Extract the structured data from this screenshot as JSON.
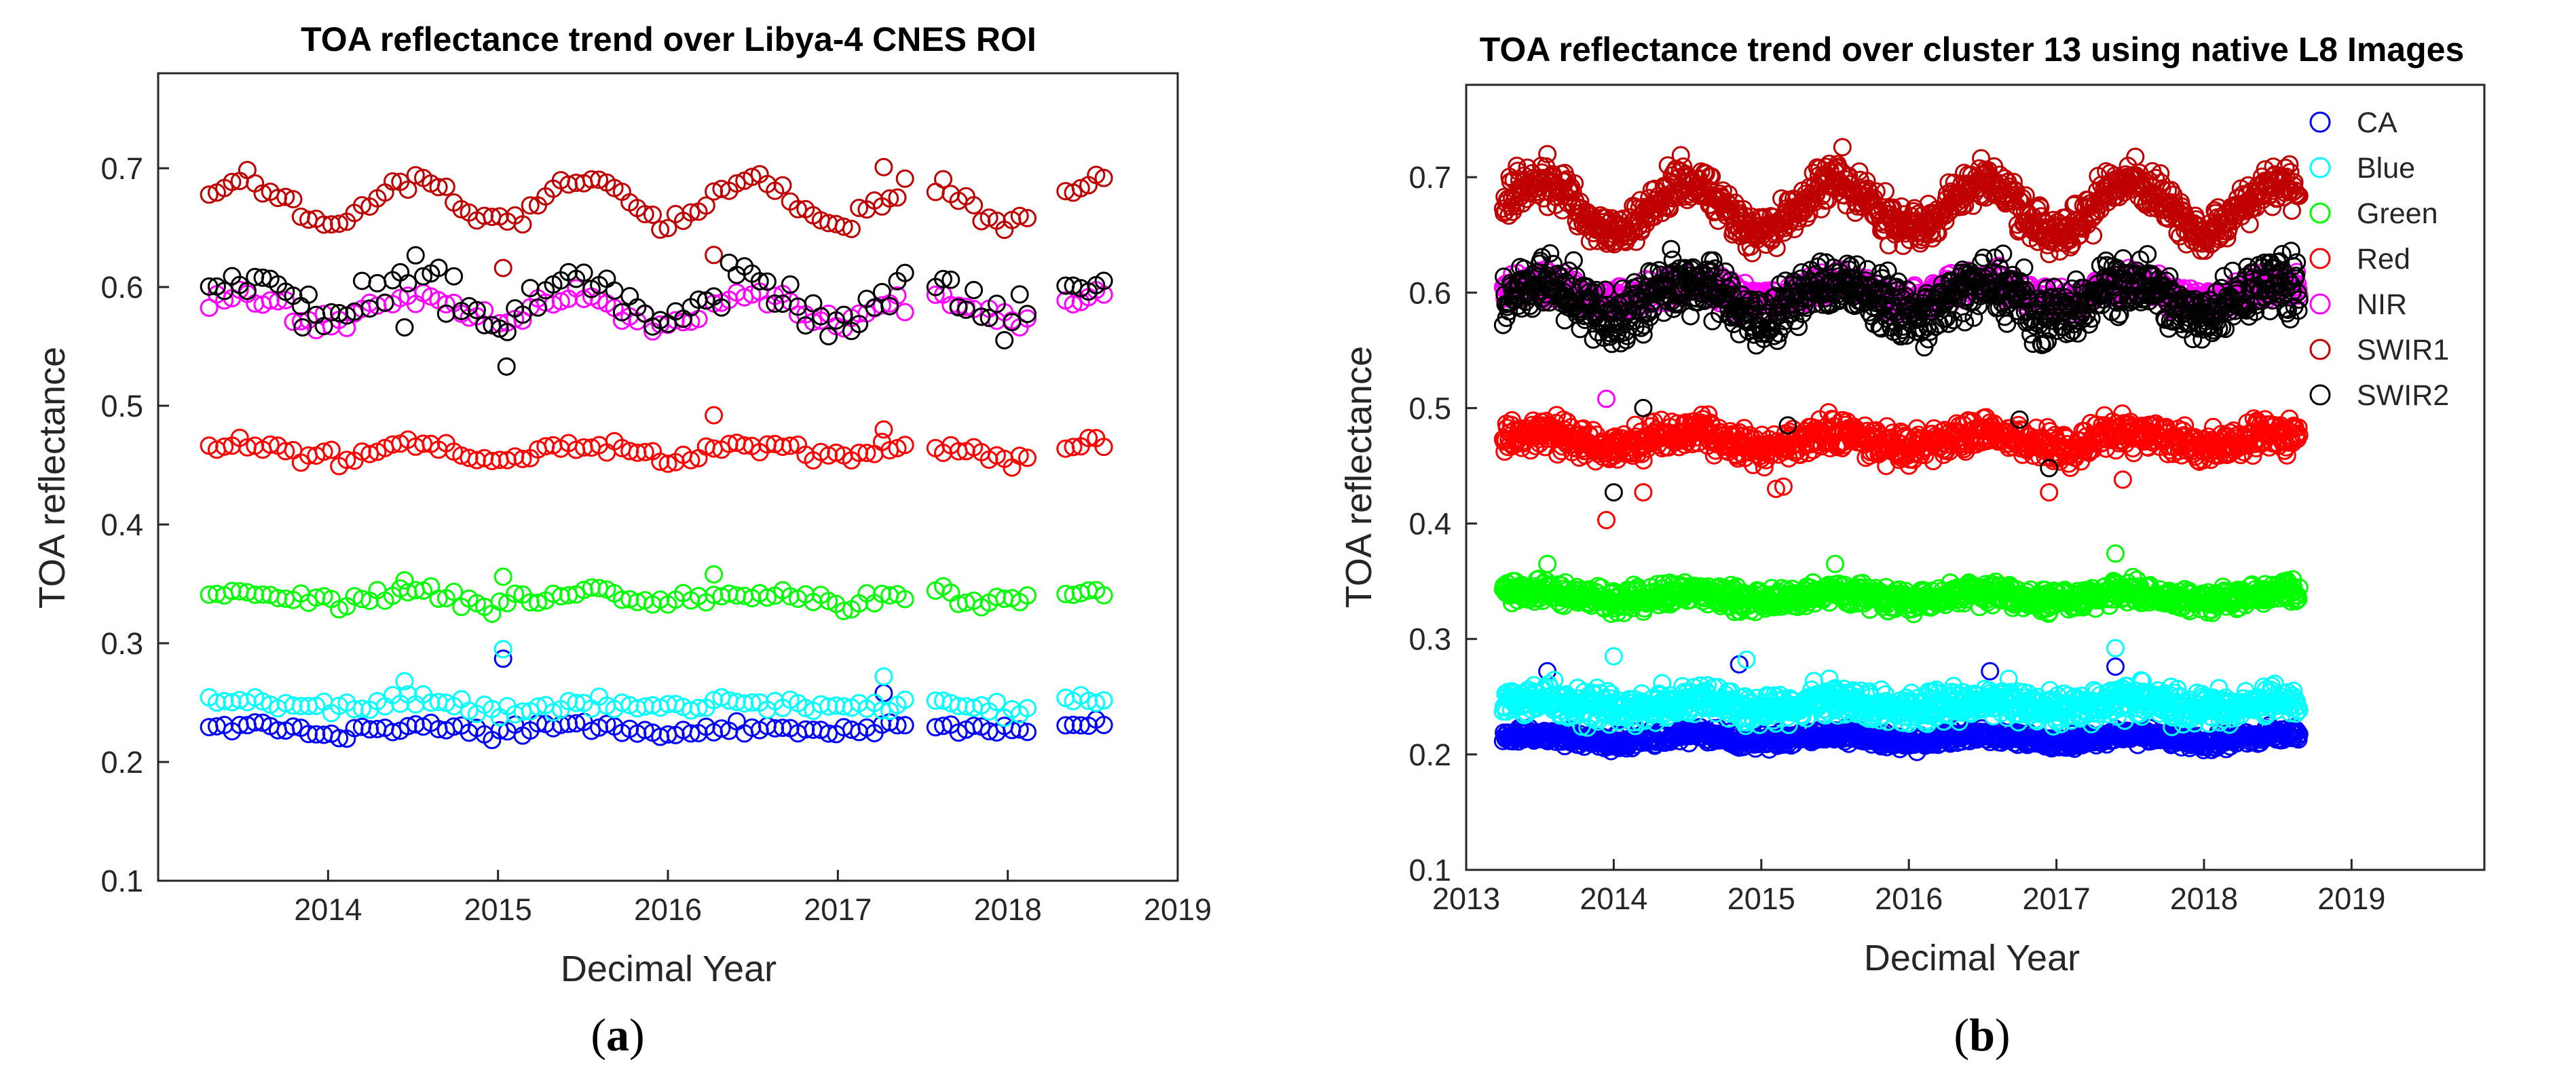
{
  "chart_data": [
    {
      "type": "scatter",
      "panel": "(a)",
      "panel_letter": "a",
      "title": "TOA reflectance trend over Libya-4 CNES ROI",
      "xlabel": "Decimal Year",
      "ylabel": "TOA reflectance",
      "xlim": [
        2013.0,
        2019.0
      ],
      "ylim": [
        0.1,
        0.78
      ],
      "xticks": [
        2014,
        2015,
        2016,
        2017,
        2018,
        2019
      ],
      "yticks": [
        0.1,
        0.2,
        0.3,
        0.4,
        0.5,
        0.6,
        0.7
      ],
      "date_range": [
        2013.3,
        2018.6
      ],
      "gaps": [
        [
          2017.4,
          2017.55
        ],
        [
          2018.15,
          2018.3
        ]
      ],
      "step": 0.045,
      "outliers": [
        [
          2015.03,
          1,
          0.295
        ],
        [
          2015.03,
          0,
          0.287
        ],
        [
          2017.27,
          1,
          0.272
        ],
        [
          2017.27,
          0,
          0.258
        ],
        [
          2016.27,
          5,
          0.627
        ],
        [
          2017.27,
          5,
          0.701
        ],
        [
          2016.27,
          3,
          0.492
        ],
        [
          2017.27,
          3,
          0.48
        ],
        [
          2016.27,
          2,
          0.358
        ],
        [
          2015.03,
          2,
          0.356
        ],
        [
          2014.45,
          2,
          0.353
        ],
        [
          2015.05,
          6,
          0.533
        ],
        [
          2015.03,
          5,
          0.616
        ],
        [
          2013.85,
          6,
          0.566
        ],
        [
          2014.45,
          6,
          0.566
        ],
        [
          2014.45,
          1,
          0.268
        ]
      ],
      "series": [
        {
          "name": "CA",
          "color": "#0000ff",
          "base": 0.228,
          "amp": 0.003,
          "noise": 0.004
        },
        {
          "name": "Blue",
          "color": "#00ffff",
          "base": 0.248,
          "amp": 0.003,
          "noise": 0.005
        },
        {
          "name": "Green",
          "color": "#00ff00",
          "base": 0.338,
          "amp": 0.004,
          "noise": 0.005
        },
        {
          "name": "Red",
          "color": "#ff0000",
          "base": 0.462,
          "amp": 0.006,
          "noise": 0.005
        },
        {
          "name": "NIR",
          "color": "#ff00ff",
          "base": 0.582,
          "amp": 0.01,
          "noise": 0.007
        },
        {
          "name": "SWIR1",
          "color": "#c00000",
          "base": 0.672,
          "amp": 0.018,
          "noise": 0.006
        },
        {
          "name": "SWIR2",
          "color": "#000000",
          "base": 0.59,
          "amp": 0.018,
          "noise": 0.012
        }
      ]
    },
    {
      "type": "scatter",
      "panel": "(b)",
      "panel_letter": "b",
      "title": "TOA reflectance trend over cluster 13 using native L8 Images",
      "xlabel": "Decimal Year",
      "ylabel": "TOA reflectance",
      "xlim": [
        2013.0,
        2019.9
      ],
      "ylim": [
        0.1,
        0.78
      ],
      "xticks": [
        2013,
        2014,
        2015,
        2016,
        2017,
        2018,
        2019
      ],
      "yticks": [
        0.1,
        0.2,
        0.3,
        0.4,
        0.5,
        0.6,
        0.7
      ],
      "date_range": [
        2013.25,
        2018.65
      ],
      "gaps": [],
      "step": 0.0055,
      "legend_location": "top-right",
      "outliers": [
        [
          2013.95,
          3,
          0.403
        ],
        [
          2014.2,
          3,
          0.427
        ],
        [
          2015.1,
          3,
          0.43
        ],
        [
          2015.15,
          3,
          0.432
        ],
        [
          2016.95,
          3,
          0.427
        ],
        [
          2017.45,
          3,
          0.438
        ],
        [
          2014.0,
          6,
          0.427
        ],
        [
          2014.2,
          6,
          0.5
        ],
        [
          2015.18,
          6,
          0.485
        ],
        [
          2016.75,
          6,
          0.49
        ],
        [
          2016.95,
          6,
          0.448
        ],
        [
          2013.95,
          4,
          0.508
        ],
        [
          2013.55,
          5,
          0.72
        ],
        [
          2015.55,
          5,
          0.726
        ],
        [
          2013.55,
          2,
          0.365
        ],
        [
          2015.5,
          2,
          0.365
        ],
        [
          2017.4,
          2,
          0.374
        ],
        [
          2014.9,
          1,
          0.282
        ],
        [
          2017.4,
          1,
          0.292
        ],
        [
          2014.0,
          1,
          0.285
        ],
        [
          2013.55,
          0,
          0.272
        ],
        [
          2014.85,
          0,
          0.278
        ],
        [
          2016.55,
          0,
          0.272
        ],
        [
          2017.4,
          0,
          0.276
        ]
      ],
      "series": [
        {
          "name": "CA",
          "color": "#0000ff",
          "base": 0.214,
          "amp": 0.003,
          "noise": 0.005
        },
        {
          "name": "Blue",
          "color": "#00ffff",
          "base": 0.243,
          "amp": 0.004,
          "noise": 0.011
        },
        {
          "name": "Green",
          "color": "#00ff00",
          "base": 0.337,
          "amp": 0.004,
          "noise": 0.008
        },
        {
          "name": "Red",
          "color": "#ff0000",
          "base": 0.472,
          "amp": 0.006,
          "noise": 0.011
        },
        {
          "name": "NIR",
          "color": "#ff00ff",
          "base": 0.6,
          "amp": 0.008,
          "noise": 0.009
        },
        {
          "name": "SWIR1",
          "color": "#c00000",
          "base": 0.675,
          "amp": 0.022,
          "noise": 0.014
        },
        {
          "name": "SWIR2",
          "color": "#000000",
          "base": 0.595,
          "amp": 0.015,
          "noise": 0.019
        }
      ]
    }
  ]
}
